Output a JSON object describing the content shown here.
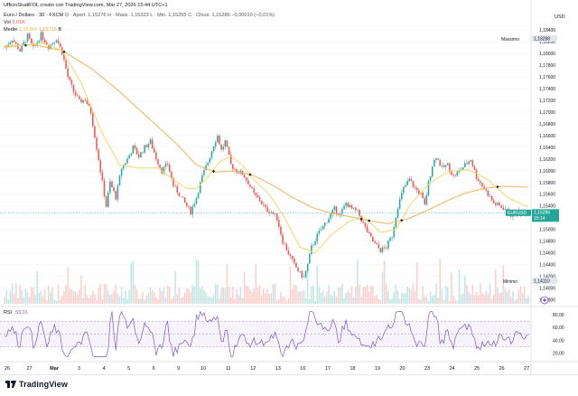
{
  "header": {
    "credit": "UfficioStudiFOL creato con TradingView.com, Mar 27, 2026 15:44 UTC+1",
    "symbol_line": "Euro / Dollaro · 30 · FXCM",
    "ohlc": "O · Apert. 1,15276  H · Mass. 1,15323  L · Min. 1,15255  C · Chius. 1,15286 −0,00010 (−0,01%)",
    "vol_label": "Vol",
    "vol_value": "3,01K",
    "ma_label": "Medie",
    "ma_value1": "1,15384",
    "ma_value2": "1,15715",
    "ma_flag": "B"
  },
  "price_axis": {
    "currency": "USD",
    "ticks": [
      "1,18400",
      "1,18200",
      "1,18000",
      "1,17800",
      "1,17600",
      "1,17400",
      "1,17200",
      "1,17000",
      "1,16800",
      "1,16600",
      "1,16400",
      "1,16200",
      "1,16000",
      "1,15800",
      "1,15600",
      "1,15400",
      "1,15200",
      "1,15000",
      "1,14800",
      "1,14600",
      "1,14400",
      "1,14200",
      "1,14000",
      "1,13800"
    ],
    "max_label": "Massimo",
    "max_value": "1,18288",
    "min_label": "Minimo",
    "min_value": "1,14110",
    "current_symbol": "EURUSD",
    "current_value": "1,15286",
    "current_time": "15:14"
  },
  "rsi": {
    "label": "RSI",
    "value": "53,01",
    "ticks": [
      "80,00",
      "60,00",
      "40,00",
      "20,00"
    ]
  },
  "time_axis": [
    "26",
    "27",
    "Mar",
    "3",
    "4",
    "5",
    "6",
    "9",
    "10",
    "11",
    "12",
    "13",
    "16",
    "17",
    "18",
    "19",
    "20",
    "23",
    "24",
    "25",
    "26",
    "27"
  ],
  "footer": {
    "brand": "TradingView"
  },
  "colors": {
    "up": "#26a69a",
    "down": "#ef5350",
    "ma_fast": "#f5d66b",
    "ma_slow": "#f0b35a",
    "rsi": "#7e57c2",
    "current": "#26a69a"
  },
  "chart_data": {
    "type": "candlestick",
    "title": "Euro / Dollaro · 30 · FXCM",
    "ylabel": "USD",
    "ylim": [
      1.1375,
      1.1845
    ],
    "x_start": "26",
    "x_end": "27",
    "anchors": [
      [
        0,
        1.181
      ],
      [
        4,
        1.1825
      ],
      [
        8,
        1.1805
      ],
      [
        12,
        1.183
      ],
      [
        15,
        1.1808
      ],
      [
        19,
        1.1832
      ],
      [
        23,
        1.1812
      ],
      [
        27,
        1.1826
      ],
      [
        30,
        1.1802
      ],
      [
        33,
        1.176
      ],
      [
        36,
        1.1735
      ],
      [
        39,
        1.1718
      ],
      [
        42,
        1.1722
      ],
      [
        45,
        1.17
      ],
      [
        48,
        1.164
      ],
      [
        50,
        1.16
      ],
      [
        52,
        1.156
      ],
      [
        53,
        1.154
      ],
      [
        55,
        1.158
      ],
      [
        58,
        1.1555
      ],
      [
        61,
        1.1605
      ],
      [
        64,
        1.162
      ],
      [
        67,
        1.164
      ],
      [
        70,
        1.1625
      ],
      [
        73,
        1.164
      ],
      [
        76,
        1.165
      ],
      [
        79,
        1.1622
      ],
      [
        82,
        1.16
      ],
      [
        85,
        1.1612
      ],
      [
        88,
        1.1575
      ],
      [
        91,
        1.156
      ],
      [
        94,
        1.1545
      ],
      [
        97,
        1.153
      ],
      [
        100,
        1.1555
      ],
      [
        103,
        1.159
      ],
      [
        106,
        1.1615
      ],
      [
        109,
        1.1645
      ],
      [
        111,
        1.166
      ],
      [
        113,
        1.1635
      ],
      [
        115,
        1.165
      ],
      [
        118,
        1.161
      ],
      [
        121,
        1.16
      ],
      [
        124,
        1.1595
      ],
      [
        127,
        1.158
      ],
      [
        130,
        1.156
      ],
      [
        133,
        1.155
      ],
      [
        136,
        1.1535
      ],
      [
        139,
        1.153
      ],
      [
        142,
        1.152
      ],
      [
        145,
        1.148
      ],
      [
        148,
        1.146
      ],
      [
        151,
        1.144
      ],
      [
        154,
        1.1425
      ],
      [
        156,
        1.1418
      ],
      [
        158,
        1.144
      ],
      [
        160,
        1.147
      ],
      [
        163,
        1.149
      ],
      [
        166,
        1.1505
      ],
      [
        169,
        1.152
      ],
      [
        172,
        1.1535
      ],
      [
        175,
        1.1525
      ],
      [
        178,
        1.1545
      ],
      [
        181,
        1.1535
      ],
      [
        184,
        1.153
      ],
      [
        187,
        1.151
      ],
      [
        190,
        1.149
      ],
      [
        193,
        1.1475
      ],
      [
        196,
        1.1465
      ],
      [
        199,
        1.147
      ],
      [
        202,
        1.149
      ],
      [
        205,
        1.154
      ],
      [
        208,
        1.157
      ],
      [
        211,
        1.1585
      ],
      [
        214,
        1.157
      ],
      [
        217,
        1.156
      ],
      [
        219,
        1.154
      ],
      [
        221,
        1.158
      ],
      [
        223,
        1.161
      ],
      [
        225,
        1.1625
      ],
      [
        228,
        1.1605
      ],
      [
        231,
        1.161
      ],
      [
        234,
        1.159
      ],
      [
        237,
        1.16
      ],
      [
        240,
        1.161
      ],
      [
        243,
        1.162
      ],
      [
        246,
        1.159
      ],
      [
        249,
        1.1575
      ],
      [
        252,
        1.156
      ],
      [
        255,
        1.1545
      ],
      [
        258,
        1.154
      ],
      [
        261,
        1.1535
      ],
      [
        264,
        1.1525
      ],
      [
        267,
        1.153
      ],
      [
        270,
        1.1528
      ],
      [
        273,
        1.1529
      ]
    ],
    "ma_fast_anchors": [
      [
        0,
        1.181
      ],
      [
        20,
        1.1818
      ],
      [
        30,
        1.1805
      ],
      [
        40,
        1.175
      ],
      [
        50,
        1.167
      ],
      [
        60,
        1.161
      ],
      [
        70,
        1.1605
      ],
      [
        80,
        1.1605
      ],
      [
        88,
        1.1585
      ],
      [
        95,
        1.157
      ],
      [
        100,
        1.157
      ],
      [
        106,
        1.159
      ],
      [
        112,
        1.1615
      ],
      [
        118,
        1.1625
      ],
      [
        124,
        1.161
      ],
      [
        130,
        1.1585
      ],
      [
        138,
        1.156
      ],
      [
        146,
        1.152
      ],
      [
        154,
        1.147
      ],
      [
        162,
        1.146
      ],
      [
        170,
        1.149
      ],
      [
        180,
        1.1515
      ],
      [
        188,
        1.152
      ],
      [
        196,
        1.1495
      ],
      [
        204,
        1.15
      ],
      [
        212,
        1.1545
      ],
      [
        222,
        1.158
      ],
      [
        232,
        1.16
      ],
      [
        242,
        1.1602
      ],
      [
        252,
        1.1585
      ],
      [
        262,
        1.1555
      ],
      [
        273,
        1.1538
      ]
    ],
    "ma_slow_anchors": [
      [
        0,
        1.1812
      ],
      [
        15,
        1.1815
      ],
      [
        30,
        1.1805
      ],
      [
        45,
        1.1775
      ],
      [
        60,
        1.1735
      ],
      [
        75,
        1.169
      ],
      [
        90,
        1.1645
      ],
      [
        100,
        1.161
      ],
      [
        110,
        1.1598
      ],
      [
        120,
        1.16
      ],
      [
        130,
        1.1592
      ],
      [
        140,
        1.1575
      ],
      [
        150,
        1.1555
      ],
      [
        160,
        1.1538
      ],
      [
        170,
        1.1528
      ],
      [
        180,
        1.1522
      ],
      [
        190,
        1.1515
      ],
      [
        200,
        1.151
      ],
      [
        210,
        1.1518
      ],
      [
        220,
        1.1532
      ],
      [
        230,
        1.1548
      ],
      [
        240,
        1.1562
      ],
      [
        250,
        1.157
      ],
      [
        260,
        1.1574
      ],
      [
        273,
        1.1572
      ]
    ],
    "rsi_ylim": [
      10,
      90
    ],
    "rsi_levels": [
      70,
      50,
      30
    ]
  }
}
